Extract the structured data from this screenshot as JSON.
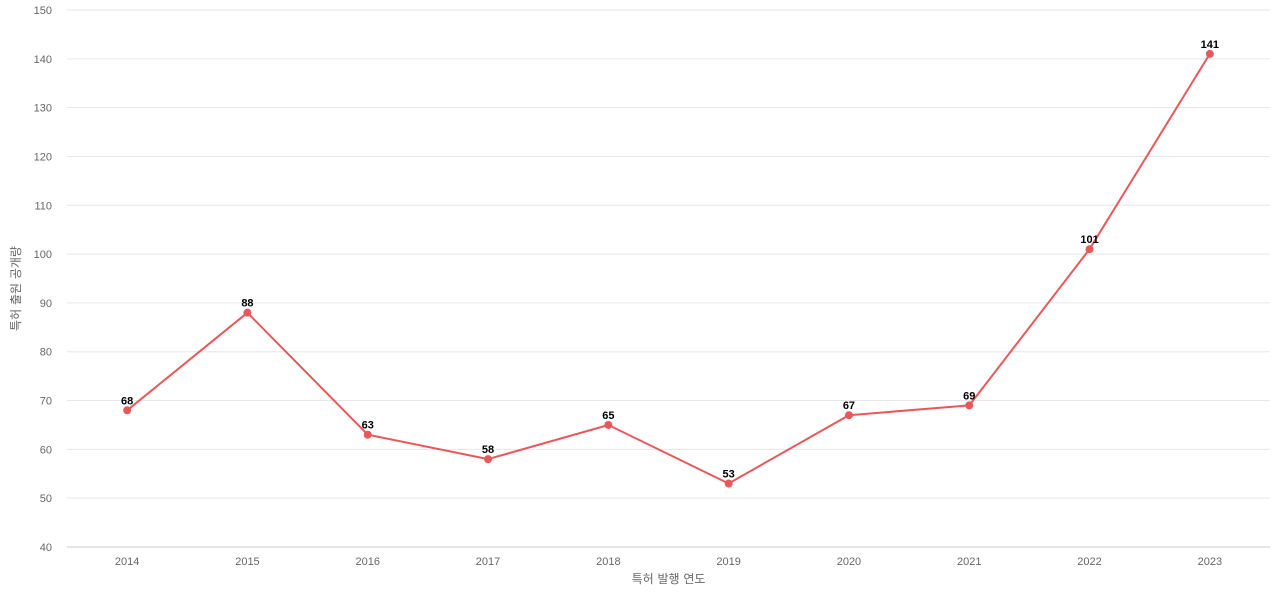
{
  "chart_data": {
    "type": "line",
    "title": "",
    "xlabel": "특허 발행 연도",
    "ylabel": "특허 출원 공개량",
    "categories": [
      "2014",
      "2015",
      "2016",
      "2017",
      "2018",
      "2019",
      "2020",
      "2021",
      "2022",
      "2023"
    ],
    "series": [
      {
        "values": [
          68,
          88,
          63,
          58,
          65,
          53,
          67,
          69,
          101,
          141
        ],
        "color": "#e8585a"
      }
    ],
    "ylim": [
      40,
      150
    ],
    "yticks": [
      40,
      50,
      60,
      70,
      80,
      90,
      100,
      110,
      120,
      130,
      140,
      150
    ],
    "grid": true,
    "data_labels": true,
    "legend": "none"
  }
}
